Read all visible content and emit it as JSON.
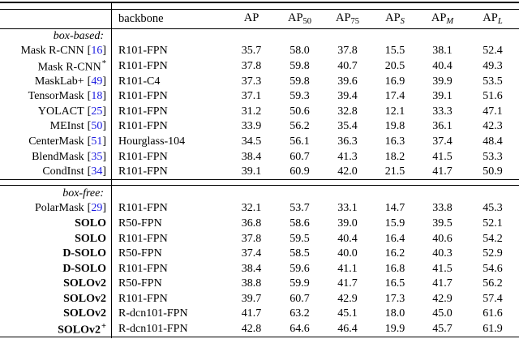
{
  "table": {
    "colors": {
      "citation": "#1b1be0",
      "text": "#000000",
      "rule": "#000000"
    },
    "header": {
      "backbone": "backbone",
      "metrics": [
        {
          "base": "AP",
          "sub": ""
        },
        {
          "base": "AP",
          "sub": "50"
        },
        {
          "base": "AP",
          "sub": "75"
        },
        {
          "base": "AP",
          "sub": "S"
        },
        {
          "base": "AP",
          "sub": "M"
        },
        {
          "base": "AP",
          "sub": "L"
        }
      ]
    },
    "sections": [
      {
        "label": "box-based:",
        "rows": [
          {
            "method": "Mask R-CNN",
            "cite": "16",
            "sup": "",
            "bold": false,
            "backbone": "R101-FPN",
            "values": [
              "35.7",
              "58.0",
              "37.8",
              "15.5",
              "38.1",
              "52.4"
            ]
          },
          {
            "method": "Mask R-CNN",
            "cite": "",
            "sup": "*",
            "bold": false,
            "backbone": "R101-FPN",
            "values": [
              "37.8",
              "59.8",
              "40.7",
              "20.5",
              "40.4",
              "49.3"
            ]
          },
          {
            "method": "MaskLab+",
            "cite": "49",
            "sup": "",
            "bold": false,
            "backbone": "R101-C4",
            "values": [
              "37.3",
              "59.8",
              "39.6",
              "16.9",
              "39.9",
              "53.5"
            ]
          },
          {
            "method": "TensorMask",
            "cite": "18",
            "sup": "",
            "bold": false,
            "backbone": "R101-FPN",
            "values": [
              "37.1",
              "59.3",
              "39.4",
              "17.4",
              "39.1",
              "51.6"
            ]
          },
          {
            "method": "YOLACT",
            "cite": "25",
            "sup": "",
            "bold": false,
            "backbone": "R101-FPN",
            "values": [
              "31.2",
              "50.6",
              "32.8",
              "12.1",
              "33.3",
              "47.1"
            ]
          },
          {
            "method": "MEInst",
            "cite": "50",
            "sup": "",
            "bold": false,
            "backbone": "R101-FPN",
            "values": [
              "33.9",
              "56.2",
              "35.4",
              "19.8",
              "36.1",
              "42.3"
            ]
          },
          {
            "method": "CenterMask",
            "cite": "51",
            "sup": "",
            "bold": false,
            "backbone": "Hourglass-104",
            "values": [
              "34.5",
              "56.1",
              "36.3",
              "16.3",
              "37.4",
              "48.4"
            ]
          },
          {
            "method": "BlendMask",
            "cite": "35",
            "sup": "",
            "bold": false,
            "backbone": "R101-FPN",
            "values": [
              "38.4",
              "60.7",
              "41.3",
              "18.2",
              "41.5",
              "53.3"
            ]
          },
          {
            "method": "CondInst",
            "cite": "34",
            "sup": "",
            "bold": false,
            "backbone": "R101-FPN",
            "values": [
              "39.1",
              "60.9",
              "42.0",
              "21.5",
              "41.7",
              "50.9"
            ]
          }
        ]
      },
      {
        "label": "box-free:",
        "rows": [
          {
            "method": "PolarMask",
            "cite": "29",
            "sup": "",
            "bold": false,
            "backbone": "R101-FPN",
            "values": [
              "32.1",
              "53.7",
              "33.1",
              "14.7",
              "33.8",
              "45.3"
            ]
          },
          {
            "method": "SOLO",
            "cite": "",
            "sup": "",
            "bold": true,
            "backbone": "R50-FPN",
            "values": [
              "36.8",
              "58.6",
              "39.0",
              "15.9",
              "39.5",
              "52.1"
            ]
          },
          {
            "method": "SOLO",
            "cite": "",
            "sup": "",
            "bold": true,
            "backbone": "R101-FPN",
            "values": [
              "37.8",
              "59.5",
              "40.4",
              "16.4",
              "40.6",
              "54.2"
            ]
          },
          {
            "method": "D-SOLO",
            "cite": "",
            "sup": "",
            "bold": true,
            "backbone": "R50-FPN",
            "values": [
              "37.4",
              "58.5",
              "40.0",
              "16.2",
              "40.3",
              "52.9"
            ]
          },
          {
            "method": "D-SOLO",
            "cite": "",
            "sup": "",
            "bold": true,
            "backbone": "R101-FPN",
            "values": [
              "38.4",
              "59.6",
              "41.1",
              "16.8",
              "41.5",
              "54.6"
            ]
          },
          {
            "method": "SOLOv2",
            "cite": "",
            "sup": "",
            "bold": true,
            "backbone": "R50-FPN",
            "values": [
              "38.8",
              "59.9",
              "41.7",
              "16.5",
              "41.7",
              "56.2"
            ]
          },
          {
            "method": "SOLOv2",
            "cite": "",
            "sup": "",
            "bold": true,
            "backbone": "R101-FPN",
            "values": [
              "39.7",
              "60.7",
              "42.9",
              "17.3",
              "42.9",
              "57.4"
            ]
          },
          {
            "method": "SOLOv2",
            "cite": "",
            "sup": "",
            "bold": true,
            "backbone": "R-dcn101-FPN",
            "values": [
              "41.7",
              "63.2",
              "45.1",
              "18.0",
              "45.0",
              "61.6"
            ]
          },
          {
            "method": "SOLOv2",
            "cite": "",
            "sup": "+",
            "bold": true,
            "backbone": "R-dcn101-FPN",
            "values": [
              "42.8",
              "64.6",
              "46.4",
              "19.9",
              "45.7",
              "61.9"
            ]
          }
        ]
      }
    ]
  }
}
